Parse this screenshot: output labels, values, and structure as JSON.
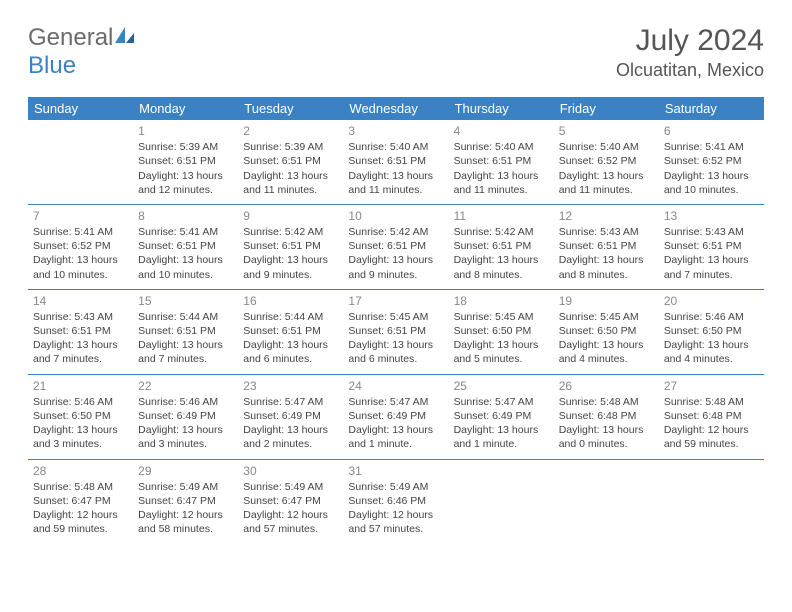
{
  "logo": {
    "text_gray": "General",
    "text_blue": "Blue"
  },
  "title": "July 2024",
  "location": "Olcuatitan, Mexico",
  "colors": {
    "header_bg": "#3b82c4",
    "header_fg": "#ffffff",
    "text": "#444444",
    "daynum": "#888888",
    "divider": "#3b82c4",
    "logo_gray": "#6b6b6b",
    "logo_blue": "#3b82c4",
    "title_color": "#555555"
  },
  "day_headers": [
    "Sunday",
    "Monday",
    "Tuesday",
    "Wednesday",
    "Thursday",
    "Friday",
    "Saturday"
  ],
  "weeks": [
    [
      null,
      {
        "n": "1",
        "sunrise": "5:39 AM",
        "sunset": "6:51 PM",
        "daylight": "13 hours and 12 minutes."
      },
      {
        "n": "2",
        "sunrise": "5:39 AM",
        "sunset": "6:51 PM",
        "daylight": "13 hours and 11 minutes."
      },
      {
        "n": "3",
        "sunrise": "5:40 AM",
        "sunset": "6:51 PM",
        "daylight": "13 hours and 11 minutes."
      },
      {
        "n": "4",
        "sunrise": "5:40 AM",
        "sunset": "6:51 PM",
        "daylight": "13 hours and 11 minutes."
      },
      {
        "n": "5",
        "sunrise": "5:40 AM",
        "sunset": "6:52 PM",
        "daylight": "13 hours and 11 minutes."
      },
      {
        "n": "6",
        "sunrise": "5:41 AM",
        "sunset": "6:52 PM",
        "daylight": "13 hours and 10 minutes."
      }
    ],
    [
      {
        "n": "7",
        "sunrise": "5:41 AM",
        "sunset": "6:52 PM",
        "daylight": "13 hours and 10 minutes."
      },
      {
        "n": "8",
        "sunrise": "5:41 AM",
        "sunset": "6:51 PM",
        "daylight": "13 hours and 10 minutes."
      },
      {
        "n": "9",
        "sunrise": "5:42 AM",
        "sunset": "6:51 PM",
        "daylight": "13 hours and 9 minutes."
      },
      {
        "n": "10",
        "sunrise": "5:42 AM",
        "sunset": "6:51 PM",
        "daylight": "13 hours and 9 minutes."
      },
      {
        "n": "11",
        "sunrise": "5:42 AM",
        "sunset": "6:51 PM",
        "daylight": "13 hours and 8 minutes."
      },
      {
        "n": "12",
        "sunrise": "5:43 AM",
        "sunset": "6:51 PM",
        "daylight": "13 hours and 8 minutes."
      },
      {
        "n": "13",
        "sunrise": "5:43 AM",
        "sunset": "6:51 PM",
        "daylight": "13 hours and 7 minutes."
      }
    ],
    [
      {
        "n": "14",
        "sunrise": "5:43 AM",
        "sunset": "6:51 PM",
        "daylight": "13 hours and 7 minutes."
      },
      {
        "n": "15",
        "sunrise": "5:44 AM",
        "sunset": "6:51 PM",
        "daylight": "13 hours and 7 minutes."
      },
      {
        "n": "16",
        "sunrise": "5:44 AM",
        "sunset": "6:51 PM",
        "daylight": "13 hours and 6 minutes."
      },
      {
        "n": "17",
        "sunrise": "5:45 AM",
        "sunset": "6:51 PM",
        "daylight": "13 hours and 6 minutes."
      },
      {
        "n": "18",
        "sunrise": "5:45 AM",
        "sunset": "6:50 PM",
        "daylight": "13 hours and 5 minutes."
      },
      {
        "n": "19",
        "sunrise": "5:45 AM",
        "sunset": "6:50 PM",
        "daylight": "13 hours and 4 minutes."
      },
      {
        "n": "20",
        "sunrise": "5:46 AM",
        "sunset": "6:50 PM",
        "daylight": "13 hours and 4 minutes."
      }
    ],
    [
      {
        "n": "21",
        "sunrise": "5:46 AM",
        "sunset": "6:50 PM",
        "daylight": "13 hours and 3 minutes."
      },
      {
        "n": "22",
        "sunrise": "5:46 AM",
        "sunset": "6:49 PM",
        "daylight": "13 hours and 3 minutes."
      },
      {
        "n": "23",
        "sunrise": "5:47 AM",
        "sunset": "6:49 PM",
        "daylight": "13 hours and 2 minutes."
      },
      {
        "n": "24",
        "sunrise": "5:47 AM",
        "sunset": "6:49 PM",
        "daylight": "13 hours and 1 minute."
      },
      {
        "n": "25",
        "sunrise": "5:47 AM",
        "sunset": "6:49 PM",
        "daylight": "13 hours and 1 minute."
      },
      {
        "n": "26",
        "sunrise": "5:48 AM",
        "sunset": "6:48 PM",
        "daylight": "13 hours and 0 minutes."
      },
      {
        "n": "27",
        "sunrise": "5:48 AM",
        "sunset": "6:48 PM",
        "daylight": "12 hours and 59 minutes."
      }
    ],
    [
      {
        "n": "28",
        "sunrise": "5:48 AM",
        "sunset": "6:47 PM",
        "daylight": "12 hours and 59 minutes."
      },
      {
        "n": "29",
        "sunrise": "5:49 AM",
        "sunset": "6:47 PM",
        "daylight": "12 hours and 58 minutes."
      },
      {
        "n": "30",
        "sunrise": "5:49 AM",
        "sunset": "6:47 PM",
        "daylight": "12 hours and 57 minutes."
      },
      {
        "n": "31",
        "sunrise": "5:49 AM",
        "sunset": "6:46 PM",
        "daylight": "12 hours and 57 minutes."
      },
      null,
      null,
      null
    ]
  ],
  "labels": {
    "sunrise_prefix": "Sunrise: ",
    "sunset_prefix": "Sunset: ",
    "daylight_prefix": "Daylight: "
  }
}
